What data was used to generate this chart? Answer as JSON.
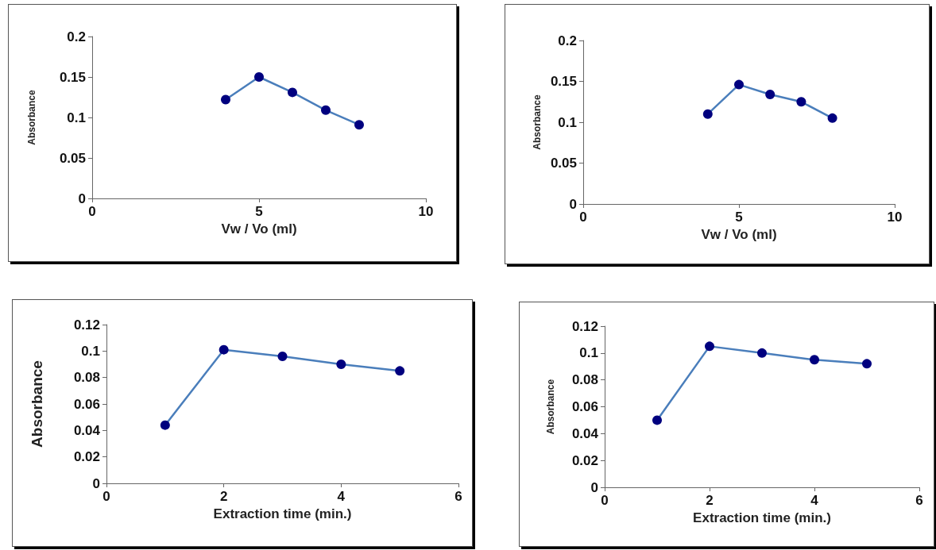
{
  "chart_data": [
    {
      "type": "line",
      "xlabel": "Vw / Vo (ml)",
      "ylabel": "Absorbance",
      "x": [
        4,
        5,
        6,
        7,
        8
      ],
      "xlim": [
        0,
        10
      ],
      "xticks": [
        0,
        5,
        10
      ],
      "ylim": [
        0,
        0.2
      ],
      "yticks": [
        0,
        0.05,
        0.1,
        0.15,
        0.2
      ],
      "marker": "circle",
      "line_style": "solid",
      "series": [
        {
          "color": "#4a7ebb",
          "colors": [
            "#00007f",
            "#00007f",
            "#00007f",
            "#00007f",
            "#00007f"
          ],
          "values": [
            0.122,
            0.15,
            0.131,
            0.109,
            0.091
          ]
        }
      ]
    },
    {
      "type": "line",
      "xlabel": "Vw / Vo (ml)",
      "ylabel": "Absorbance",
      "x": [
        4,
        5,
        6,
        7,
        8
      ],
      "xlim": [
        0,
        10
      ],
      "xticks": [
        0,
        5,
        10
      ],
      "ylim": [
        0,
        0.2
      ],
      "yticks": [
        0,
        0.05,
        0.1,
        0.15,
        0.2
      ],
      "marker": "circle",
      "line_style": "solid",
      "series": [
        {
          "color": "#4a7ebb",
          "colors": [
            "#00007f",
            "#00007f",
            "#00007f",
            "#00007f",
            "#00007f"
          ],
          "values": [
            0.11,
            0.146,
            0.134,
            0.125,
            0.105
          ]
        }
      ]
    },
    {
      "type": "line",
      "xlabel": "Extraction time (min.)",
      "ylabel": "Absorbance",
      "x": [
        1,
        2,
        3,
        4,
        5
      ],
      "xlim": [
        0,
        6
      ],
      "xticks": [
        0,
        2,
        4,
        6
      ],
      "ylim": [
        0,
        0.12
      ],
      "yticks": [
        0,
        0.02,
        0.04,
        0.06,
        0.08,
        0.1,
        0.12
      ],
      "marker": "circle",
      "line_style": "solid",
      "series": [
        {
          "color": "#4a7ebb",
          "colors": [
            "#00007f",
            "#00007f",
            "#00007f",
            "#00007f",
            "#00007f"
          ],
          "values": [
            0.044,
            0.101,
            0.096,
            0.09,
            0.085
          ]
        }
      ]
    },
    {
      "type": "line",
      "xlabel": "Extraction time (min.)",
      "ylabel": "Absorbance",
      "x": [
        1,
        2,
        3,
        4,
        5
      ],
      "xlim": [
        0,
        6
      ],
      "xticks": [
        0,
        2,
        4,
        6
      ],
      "ylim": [
        0,
        0.12
      ],
      "yticks": [
        0,
        0.02,
        0.04,
        0.06,
        0.08,
        0.1,
        0.12
      ],
      "marker": "circle",
      "line_style": "solid",
      "series": [
        {
          "color": "#4a7ebb",
          "colors": [
            "#00007f",
            "#00007f",
            "#00007f",
            "#00007f",
            "#00007f"
          ],
          "values": [
            0.05,
            0.105,
            0.1,
            0.095,
            0.092
          ]
        }
      ]
    }
  ]
}
